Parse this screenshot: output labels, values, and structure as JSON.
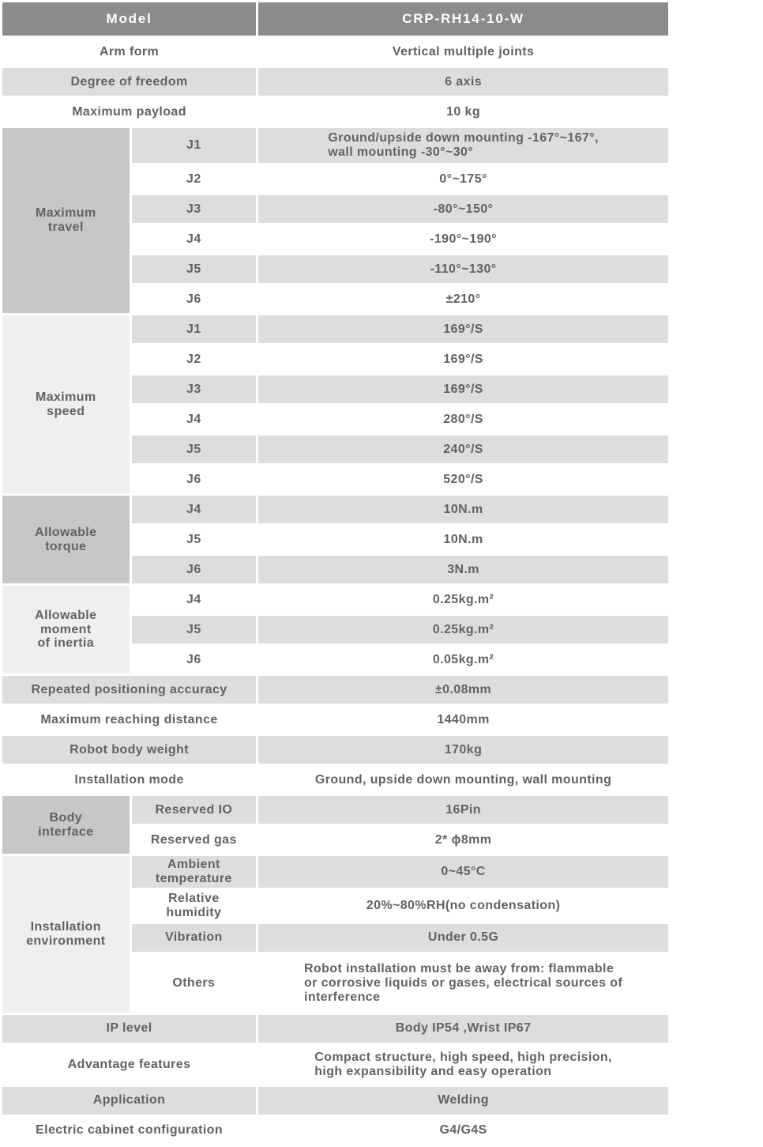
{
  "colors": {
    "header_bg": "#8b8b8b",
    "header_text": "#ffffff",
    "row_gray": "#dcdddd",
    "group_cell_dark": "#c7c7c7",
    "group_cell_light": "#efefef",
    "body_text": "#616264",
    "row_white": "#ffffff"
  },
  "header": {
    "model_label": "Model",
    "model_value": "CRP-RH14-10-W"
  },
  "rows": {
    "arm_form": {
      "label": "Arm form",
      "value": "Vertical multiple joints"
    },
    "degree_of_freedom": {
      "label": "Degree of freedom",
      "value": "6 axis"
    },
    "maximum_payload": {
      "label": "Maximum payload",
      "value": "10 kg"
    },
    "repeated_positioning_accuracy": {
      "label": "Repeated positioning accuracy",
      "value": "±0.08mm"
    },
    "maximum_reaching_distance": {
      "label": "Maximum reaching distance",
      "value": "1440mm"
    },
    "robot_body_weight": {
      "label": "Robot body weight",
      "value": "170kg"
    },
    "installation_mode": {
      "label": "Installation mode",
      "value": "Ground, upside down mounting, wall mounting"
    },
    "ip_level": {
      "label": "IP level",
      "value": "Body IP54 ,Wrist IP67"
    },
    "advantage_features": {
      "label": "Advantage features",
      "value": "Compact structure, high speed, high precision,\nhigh expansibility and easy operation"
    },
    "application": {
      "label": "Application",
      "value": "Welding"
    },
    "electric_cabinet_configuration": {
      "label": "Electric cabinet configuration",
      "value": "G4/G4S"
    }
  },
  "groups": {
    "maximum_travel": {
      "label": "Maximum\ntravel",
      "items": [
        {
          "joint": "J1",
          "value": "Ground/upside down mounting -167°~167°,\nwall mounting -30°~30°"
        },
        {
          "joint": "J2",
          "value": "0°~175°"
        },
        {
          "joint": "J3",
          "value": "-80°~150°"
        },
        {
          "joint": "J4",
          "value": "-190°~190°"
        },
        {
          "joint": "J5",
          "value": "-110°~130°"
        },
        {
          "joint": "J6",
          "value": "±210°"
        }
      ]
    },
    "maximum_speed": {
      "label": "Maximum\nspeed",
      "items": [
        {
          "joint": "J1",
          "value": "169°/S"
        },
        {
          "joint": "J2",
          "value": "169°/S"
        },
        {
          "joint": "J3",
          "value": "169°/S"
        },
        {
          "joint": "J4",
          "value": "280°/S"
        },
        {
          "joint": "J5",
          "value": "240°/S"
        },
        {
          "joint": "J6",
          "value": "520°/S"
        }
      ]
    },
    "allowable_torque": {
      "label": "Allowable\ntorque",
      "items": [
        {
          "joint": "J4",
          "value": "10N.m"
        },
        {
          "joint": "J5",
          "value": "10N.m"
        },
        {
          "joint": "J6",
          "value": "3N.m"
        }
      ]
    },
    "allowable_moment_of_inertia": {
      "label": "Allowable\nmoment\nof inertia",
      "items": [
        {
          "joint": "J4",
          "value": "0.25kg.m²"
        },
        {
          "joint": "J5",
          "value": "0.25kg.m²"
        },
        {
          "joint": "J6",
          "value": "0.05kg.m²"
        }
      ]
    },
    "body_interface": {
      "label": "Body\ninterface",
      "items": [
        {
          "name": "Reserved IO",
          "value": "16Pin"
        },
        {
          "name": "Reserved gas",
          "value": "2* ϕ8mm"
        }
      ]
    },
    "installation_environment": {
      "label": "Installation\nenvironment",
      "items": [
        {
          "name": "Ambient\ntemperature",
          "value": "0~45°C"
        },
        {
          "name": "Relative\nhumidity",
          "value": "20%~80%RH(no condensation)"
        },
        {
          "name": "Vibration",
          "value": "Under 0.5G"
        },
        {
          "name": "Others",
          "value": "Robot installation must be away from: flammable\nor corrosive liquids or gases, electrical sources of\ninterference"
        }
      ]
    }
  }
}
